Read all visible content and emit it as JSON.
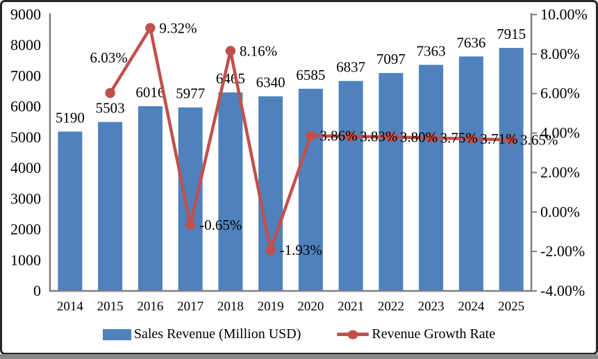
{
  "window": {
    "background": "#ffffff",
    "border_color": "#262626",
    "bottom_strip_color": "#8a8a8a"
  },
  "chart_data": {
    "type": "bar",
    "subtype": "combo-bar-line-dual-axis",
    "title": "",
    "grid": false,
    "legend_position": "bottom",
    "categories": [
      "2014",
      "2015",
      "2016",
      "2017",
      "2018",
      "2019",
      "2020",
      "2021",
      "2022",
      "2023",
      "2024",
      "2025"
    ],
    "series": [
      {
        "name": "Sales Revenue (Million USD)",
        "type": "bar",
        "axis": "left",
        "color": "#4F81BD",
        "values": [
          5190,
          5503,
          6016,
          5977,
          6465,
          6340,
          6585,
          6837,
          7097,
          7363,
          7636,
          7915
        ],
        "value_labels": [
          "5190",
          "5503",
          "6016",
          "5977",
          "6465",
          "6340",
          "6585",
          "6837",
          "7097",
          "7363",
          "7636",
          "7915"
        ]
      },
      {
        "name": "Revenue Growth Rate",
        "type": "line",
        "axis": "right",
        "color": "#C0504D",
        "marker": "circle",
        "values": [
          null,
          6.03,
          9.32,
          -0.65,
          8.16,
          -1.93,
          3.86,
          3.83,
          3.8,
          3.75,
          3.71,
          3.65
        ],
        "value_labels": [
          null,
          "6.03%",
          "9.32%",
          "-0.65%",
          "8.16%",
          "-1.93%",
          "3.86%",
          "3.83%",
          "3.80%",
          "3.75%",
          "3.71%",
          "3.65%"
        ],
        "label_placements": [
          null,
          "above",
          "right",
          "right",
          "right",
          "right",
          "right",
          "right",
          "right",
          "right",
          "right",
          "right"
        ]
      }
    ],
    "left_axis": {
      "min": 0,
      "max": 9000,
      "step": 1000,
      "tick_labels": [
        "0",
        "1000",
        "2000",
        "3000",
        "4000",
        "5000",
        "6000",
        "7000",
        "8000",
        "9000"
      ]
    },
    "right_axis": {
      "min": -4,
      "max": 10,
      "step": 2,
      "tick_labels": [
        "-4.00%",
        "-2.00%",
        "0.00%",
        "2.00%",
        "4.00%",
        "6.00%",
        "8.00%",
        "10.00%"
      ]
    },
    "axis_color": "#7f7f7f",
    "text_color": "#000000"
  },
  "legend": {
    "items": [
      {
        "label": "Sales Revenue (Million USD)",
        "swatch": "bar"
      },
      {
        "label": "Revenue Growth Rate",
        "swatch": "line-marker"
      }
    ]
  }
}
